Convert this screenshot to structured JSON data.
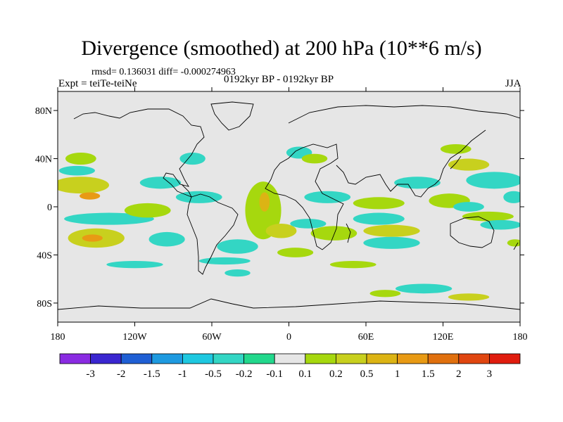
{
  "title": "Divergence (smoothed) at 200 hPa (10**6 m/s)",
  "stats_text": "rmsd= 0.136031 diff= -0.000274963",
  "experiment_text": "Expt = teiTe-teiNe",
  "period_text": "0192kyr BP - 0192kyr BP",
  "season_text": "JJA",
  "lat_ticks": [
    {
      "value": 80,
      "label": "80N"
    },
    {
      "value": 40,
      "label": "40N"
    },
    {
      "value": 0,
      "label": "0"
    },
    {
      "value": -40,
      "label": "40S"
    },
    {
      "value": -80,
      "label": "80S"
    }
  ],
  "lon_ticks": [
    {
      "value": -180,
      "label": "180"
    },
    {
      "value": -120,
      "label": "120W"
    },
    {
      "value": -60,
      "label": "60W"
    },
    {
      "value": 0,
      "label": "0"
    },
    {
      "value": 60,
      "label": "60E"
    },
    {
      "value": 120,
      "label": "120E"
    },
    {
      "value": 180,
      "label": "180"
    }
  ],
  "colorbar": {
    "colors": [
      "#8a2be2",
      "#3a26d0",
      "#1f5fd4",
      "#1e9ae0",
      "#1ec8e0",
      "#33d6c4",
      "#22d88c",
      "#e6e6e6",
      "#a6d80e",
      "#c8d01e",
      "#dcb414",
      "#e89a14",
      "#e0700e",
      "#e04610",
      "#e01c0e"
    ],
    "labels": [
      "-3",
      "-2",
      "-1.5",
      "-1",
      "-0.5",
      "-0.2",
      "-0.1",
      "0.1",
      "0.2",
      "0.5",
      "1",
      "1.5",
      "2",
      "3"
    ]
  },
  "colors": {
    "land_ocean_background": "#e6e6e6",
    "coastline": "#000000"
  },
  "regions": [
    {
      "lon": -162,
      "lat": 18,
      "rx": 22,
      "ry": 7,
      "level": 9
    },
    {
      "lon": -155,
      "lat": 9,
      "rx": 8,
      "ry": 3,
      "level": 11
    },
    {
      "lon": -150,
      "lat": -26,
      "rx": 22,
      "ry": 8,
      "level": 9
    },
    {
      "lon": -153,
      "lat": -26,
      "rx": 8,
      "ry": 3,
      "level": 11
    },
    {
      "lon": -162,
      "lat": 40,
      "rx": 12,
      "ry": 5,
      "level": 8
    },
    {
      "lon": -165,
      "lat": 30,
      "rx": 14,
      "ry": 4,
      "level": 5
    },
    {
      "lon": -140,
      "lat": -10,
      "rx": 35,
      "ry": 5,
      "level": 5
    },
    {
      "lon": -100,
      "lat": 20,
      "rx": 16,
      "ry": 5,
      "level": 5
    },
    {
      "lon": -110,
      "lat": -3,
      "rx": 18,
      "ry": 6,
      "level": 8
    },
    {
      "lon": -95,
      "lat": -27,
      "rx": 14,
      "ry": 6,
      "level": 5
    },
    {
      "lon": -70,
      "lat": 8,
      "rx": 18,
      "ry": 5,
      "level": 5
    },
    {
      "lon": -75,
      "lat": 40,
      "rx": 10,
      "ry": 5,
      "level": 5
    },
    {
      "lon": -40,
      "lat": -33,
      "rx": 16,
      "ry": 6,
      "level": 5
    },
    {
      "lon": -20,
      "lat": -3,
      "rx": 14,
      "ry": 24,
      "level": 8
    },
    {
      "lon": -19,
      "lat": 4,
      "rx": 4,
      "ry": 8,
      "level": 10
    },
    {
      "lon": -6,
      "lat": -20,
      "rx": 12,
      "ry": 6,
      "level": 9
    },
    {
      "lon": -50,
      "lat": -45,
      "rx": 20,
      "ry": 3,
      "level": 5
    },
    {
      "lon": 8,
      "lat": 45,
      "rx": 10,
      "ry": 5,
      "level": 5
    },
    {
      "lon": 20,
      "lat": 40,
      "rx": 10,
      "ry": 4,
      "level": 8
    },
    {
      "lon": 30,
      "lat": 8,
      "rx": 18,
      "ry": 5,
      "level": 5
    },
    {
      "lon": 15,
      "lat": -14,
      "rx": 14,
      "ry": 4,
      "level": 5
    },
    {
      "lon": 35,
      "lat": -22,
      "rx": 18,
      "ry": 6,
      "level": 8
    },
    {
      "lon": 5,
      "lat": -38,
      "rx": 14,
      "ry": 4,
      "level": 8
    },
    {
      "lon": 70,
      "lat": -10,
      "rx": 20,
      "ry": 5,
      "level": 5
    },
    {
      "lon": 80,
      "lat": -20,
      "rx": 22,
      "ry": 5,
      "level": 9
    },
    {
      "lon": 80,
      "lat": -30,
      "rx": 22,
      "ry": 5,
      "level": 5
    },
    {
      "lon": 70,
      "lat": 3,
      "rx": 20,
      "ry": 5,
      "level": 8
    },
    {
      "lon": 100,
      "lat": 20,
      "rx": 18,
      "ry": 5,
      "level": 5
    },
    {
      "lon": 125,
      "lat": 5,
      "rx": 16,
      "ry": 6,
      "level": 8
    },
    {
      "lon": 140,
      "lat": 0,
      "rx": 12,
      "ry": 4,
      "level": 5
    },
    {
      "lon": 160,
      "lat": 22,
      "rx": 22,
      "ry": 7,
      "level": 5
    },
    {
      "lon": 155,
      "lat": -8,
      "rx": 20,
      "ry": 4,
      "level": 8
    },
    {
      "lon": 165,
      "lat": -15,
      "rx": 16,
      "ry": 4,
      "level": 5
    },
    {
      "lon": 140,
      "lat": 35,
      "rx": 16,
      "ry": 5,
      "level": 9
    },
    {
      "lon": 130,
      "lat": 48,
      "rx": 12,
      "ry": 4,
      "level": 8
    },
    {
      "lon": 175,
      "lat": 8,
      "rx": 8,
      "ry": 5,
      "level": 5
    },
    {
      "lon": 176,
      "lat": -30,
      "rx": 6,
      "ry": 3,
      "level": 8
    },
    {
      "lon": -40,
      "lat": -55,
      "rx": 10,
      "ry": 3,
      "level": 5
    },
    {
      "lon": 105,
      "lat": -68,
      "rx": 22,
      "ry": 4,
      "level": 5
    },
    {
      "lon": 75,
      "lat": -72,
      "rx": 12,
      "ry": 3,
      "level": 8
    },
    {
      "lon": 140,
      "lat": -75,
      "rx": 16,
      "ry": 3,
      "level": 9
    },
    {
      "lon": 50,
      "lat": -48,
      "rx": 18,
      "ry": 3,
      "level": 8
    },
    {
      "lon": -120,
      "lat": -48,
      "rx": 22,
      "ry": 3,
      "level": 5
    }
  ]
}
